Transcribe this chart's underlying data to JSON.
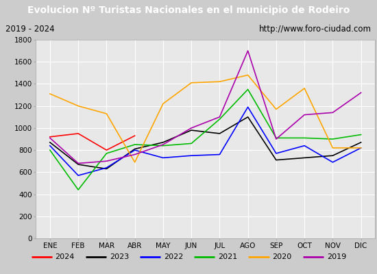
{
  "title": "Evolucion Nº Turistas Nacionales en el municipio de Rodeiro",
  "subtitle_left": "2019 - 2024",
  "subtitle_right": "http://www.foro-ciudad.com",
  "months": [
    "ENE",
    "FEB",
    "MAR",
    "ABR",
    "MAY",
    "JUN",
    "JUL",
    "AGO",
    "SEP",
    "OCT",
    "NOV",
    "DIC"
  ],
  "series": {
    "2024": [
      920,
      950,
      800,
      930,
      null,
      null,
      null,
      null,
      null,
      null,
      null,
      null
    ],
    "2023": [
      870,
      670,
      630,
      810,
      870,
      980,
      950,
      1100,
      710,
      730,
      750,
      870
    ],
    "2022": [
      840,
      570,
      640,
      800,
      730,
      750,
      760,
      1190,
      770,
      840,
      690,
      820
    ],
    "2021": [
      800,
      440,
      770,
      850,
      840,
      860,
      1080,
      1350,
      910,
      910,
      900,
      940
    ],
    "2020": [
      1310,
      1200,
      1130,
      690,
      1220,
      1410,
      1420,
      1480,
      1170,
      1360,
      820,
      820
    ],
    "2019": [
      910,
      680,
      700,
      760,
      850,
      1000,
      1100,
      1700,
      900,
      1120,
      1140,
      1320
    ]
  },
  "colors": {
    "2024": "#ff0000",
    "2023": "#000000",
    "2022": "#0000ff",
    "2021": "#00bb00",
    "2020": "#ffa500",
    "2019": "#aa00aa"
  },
  "ylim": [
    0,
    1800
  ],
  "yticks": [
    0,
    200,
    400,
    600,
    800,
    1000,
    1200,
    1400,
    1600,
    1800
  ],
  "title_bg": "#4472c4",
  "title_color": "#ffffff",
  "subtitle_bg": "#e8e8e8",
  "subtitle_border": "#888888",
  "plot_bg": "#e8e8e8",
  "grid_color": "#ffffff",
  "outer_border": "#4472c4",
  "fig_bg": "#cccccc"
}
